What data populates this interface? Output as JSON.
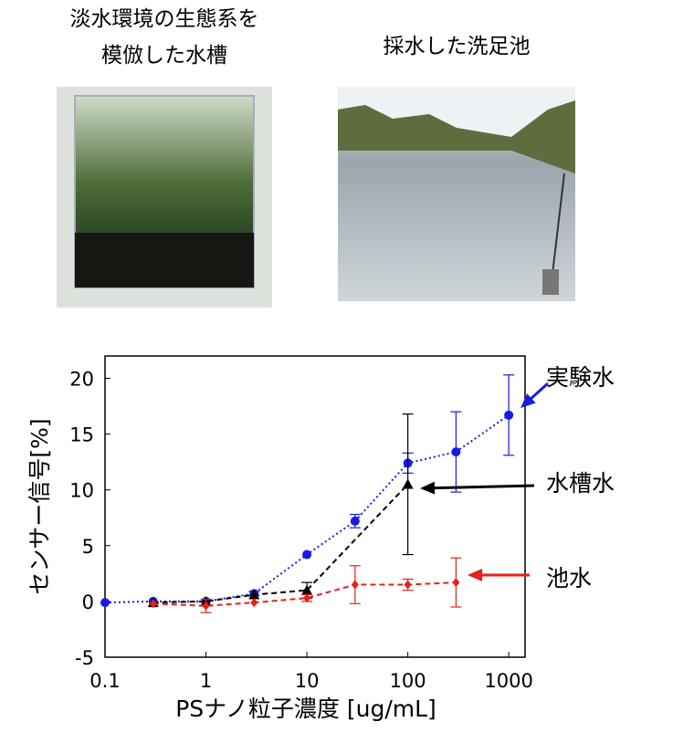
{
  "photos": [
    {
      "caption": [
        "淡水環境の生態系を",
        "模倣した水槽"
      ]
    },
    {
      "caption": [
        "採水した洗足池"
      ]
    }
  ],
  "chart_data": {
    "type": "line",
    "x_label": "PSナノ粒子濃度 [ug/mL]",
    "y_label": "センサー信号[%]",
    "xscale": "log",
    "xlim": [
      0.1,
      1450
    ],
    "ylim": [
      -5,
      22
    ],
    "xticks": [
      0.1,
      1,
      10,
      100,
      1000
    ],
    "yticks": [
      -5,
      0,
      5,
      10,
      15,
      20
    ],
    "series": [
      {
        "name": "実験水",
        "color": "#1a1ae6",
        "marker": "circle",
        "dash": "dotted",
        "x": [
          0.1,
          0.3,
          1,
          3,
          10,
          30,
          100,
          300,
          1000
        ],
        "values": [
          -0.1,
          0,
          0,
          0.7,
          4.2,
          7.2,
          12.4,
          13.4,
          16.7
        ],
        "errors": [
          null,
          null,
          null,
          0.2,
          null,
          0.6,
          0.9,
          3.6,
          3.6
        ]
      },
      {
        "name": "水槽水",
        "color": "#000000",
        "marker": "triangle",
        "dash": "dashed",
        "x": [
          0.3,
          1,
          3,
          10,
          100
        ],
        "values": [
          -0.1,
          0,
          0.6,
          1.0,
          10.5
        ],
        "errors": [
          null,
          null,
          null,
          0.7,
          6.3
        ]
      },
      {
        "name": "池水",
        "color": "#e6201a",
        "marker": "diamond",
        "dash": "dashed",
        "x": [
          0.3,
          1,
          3,
          10,
          30,
          100,
          300
        ],
        "values": [
          -0.2,
          -0.4,
          -0.1,
          0.3,
          1.5,
          1.5,
          1.7
        ],
        "errors": [
          null,
          0.6,
          null,
          0.3,
          1.7,
          0.5,
          2.2
        ]
      }
    ]
  }
}
